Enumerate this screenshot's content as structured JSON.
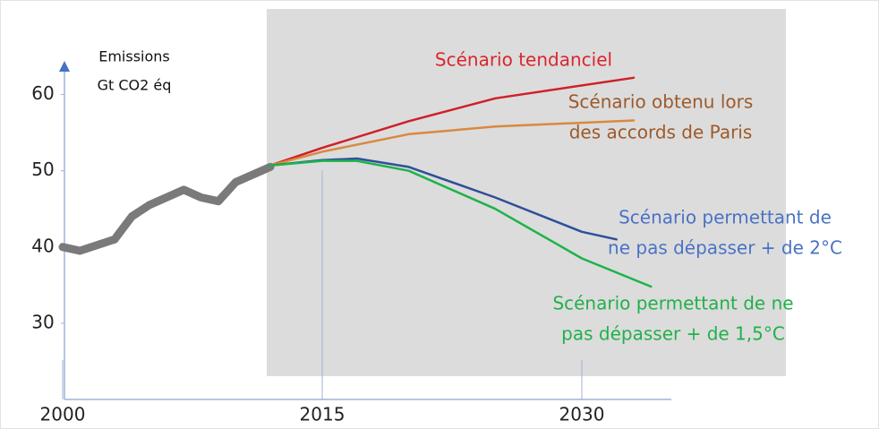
{
  "chart_data": {
    "type": "line",
    "y_label": [
      "Emissions",
      "Gt CO2 éq"
    ],
    "xlim": [
      2000,
      2035
    ],
    "xticks": [
      2000,
      2015,
      2030
    ],
    "ylim": [
      20,
      65
    ],
    "yticks": [
      30,
      40,
      50,
      60
    ],
    "reference_lines": [
      2015
    ],
    "series": [
      {
        "color": "#7a7a7a",
        "x": [
          2000,
          2001,
          2003,
          2004,
          2005,
          2007,
          2008,
          2009,
          2010,
          2012
        ],
        "values": [
          40,
          39.5,
          41,
          44,
          45.5,
          47.5,
          46.5,
          46,
          48.5,
          50.5
        ]
      },
      {
        "label_lines": [
          "Scénario tendanciel"
        ],
        "color": "#cf2027",
        "label_color": "#d9262e",
        "x": [
          2012,
          2015,
          2020,
          2025,
          2033
        ],
        "values": [
          50.7,
          53,
          56.5,
          59.5,
          62.2
        ]
      },
      {
        "label_lines": [
          "Scénario obtenu lors",
          "des accords de Paris"
        ],
        "color": "#d9893f",
        "label_color": "#9c5a2a",
        "x": [
          2012,
          2015,
          2020,
          2025,
          2033
        ],
        "values": [
          50.7,
          52.5,
          54.8,
          55.8,
          56.6
        ]
      },
      {
        "label_lines": [
          "Scénario permettant de",
          "ne pas dépasser + de 2°C"
        ],
        "color": "#2f4f9a",
        "label_color": "#4a72c4",
        "x": [
          2012,
          2015,
          2017,
          2020,
          2025,
          2030,
          2032
        ],
        "values": [
          50.7,
          51.4,
          51.6,
          50.5,
          46.5,
          42,
          41
        ]
      },
      {
        "label_lines": [
          "Scénario permettant de ne",
          "pas dépasser + de 1,5°C"
        ],
        "color": "#1db34a",
        "label_color": "#22b04a",
        "x": [
          2012,
          2015,
          2017,
          2020,
          2025,
          2030,
          2034
        ],
        "values": [
          50.7,
          51.3,
          51.3,
          50,
          45,
          38.5,
          34.8
        ]
      }
    ]
  }
}
